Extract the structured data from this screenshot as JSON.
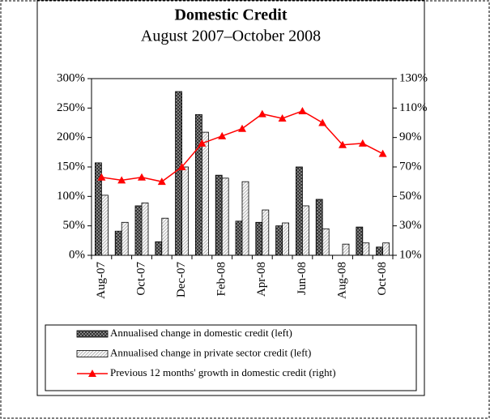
{
  "chart_data": {
    "type": "bar_line",
    "title": "Domestic Credit",
    "subtitle": "August 2007–October 2008",
    "categories": [
      "Aug-07",
      null,
      "Oct-07",
      null,
      "Dec-07",
      null,
      "Feb-08",
      null,
      "Apr-08",
      null,
      "Jun-08",
      null,
      "Aug-08",
      null,
      "Oct-08"
    ],
    "series": [
      {
        "name": "Annualised change in domestic credit (left)",
        "type": "bar",
        "color": "#333333",
        "values": [
          157,
          41,
          84,
          23,
          278,
          239,
          136,
          58,
          56,
          50,
          150,
          95,
          0,
          48,
          14
        ]
      },
      {
        "name": "Annualised change in private sector credit (left)",
        "type": "bar",
        "color": "#bbbbbb",
        "values": [
          102,
          56,
          89,
          63,
          150,
          209,
          131,
          125,
          77,
          55,
          84,
          45,
          19,
          21,
          21
        ]
      },
      {
        "name": "Previous 12 months' growth in domestic credit (right)",
        "type": "line",
        "axis": "y2",
        "color": "#ff0000",
        "values": [
          63,
          61,
          63,
          60,
          70,
          86,
          91,
          96,
          106,
          103,
          108,
          100,
          85,
          86,
          79
        ]
      }
    ],
    "ylim": [
      0,
      300
    ],
    "yticks": [
      {
        "value": 0,
        "label": "0%"
      },
      {
        "value": 50,
        "label": "50%"
      },
      {
        "value": 100,
        "label": "100%"
      },
      {
        "value": 150,
        "label": "150%"
      },
      {
        "value": 200,
        "label": "200%"
      },
      {
        "value": 250,
        "label": "250%"
      },
      {
        "value": 300,
        "label": "300%"
      }
    ],
    "y2lim": [
      10,
      130
    ],
    "y2ticks": [
      {
        "value": 10,
        "label": "10%"
      },
      {
        "value": 30,
        "label": "30%"
      },
      {
        "value": 50,
        "label": "50%"
      },
      {
        "value": 70,
        "label": "70%"
      },
      {
        "value": 90,
        "label": "90%"
      },
      {
        "value": 110,
        "label": "110%"
      },
      {
        "value": 130,
        "label": "130%"
      }
    ]
  }
}
